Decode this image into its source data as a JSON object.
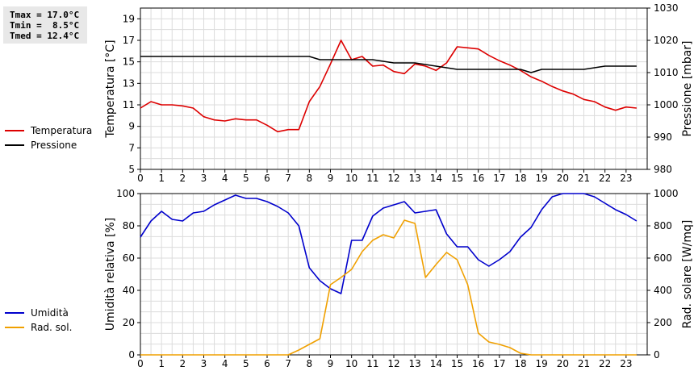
{
  "stats": {
    "tmax": "Tmax = 17.0°C",
    "tmin": "Tmin =  8.5°C",
    "tmed": "Tmed = 12.4°C"
  },
  "chart_data": [
    {
      "type": "line",
      "xlim": [
        0,
        24
      ],
      "x_ticks": [
        "0",
        "1",
        "2",
        "3",
        "4",
        "5",
        "6",
        "7",
        "8",
        "9",
        "10",
        "11",
        "12",
        "13",
        "14",
        "15",
        "16",
        "17",
        "18",
        "19",
        "20",
        "21",
        "22",
        "23"
      ],
      "ylabel_left": "Temperatura [°C]",
      "ylim_left": [
        5,
        20
      ],
      "yticks_left": [
        "5",
        "7",
        "9",
        "11",
        "13",
        "15",
        "17",
        "19"
      ],
      "ylabel_right": "Pressione [mbar]",
      "ylim_right": [
        980,
        1030
      ],
      "yticks_right": [
        "980",
        "990",
        "1000",
        "1010",
        "1020",
        "1030"
      ],
      "grid": true,
      "legend_position": "left",
      "series": [
        {
          "name": "Temperatura",
          "axis": "left",
          "color": "#dd0000",
          "x": [
            0,
            0.5,
            1,
            1.5,
            2,
            2.5,
            3,
            3.5,
            4,
            4.5,
            5,
            5.5,
            6,
            6.5,
            7,
            7.5,
            8,
            8.5,
            9,
            9.5,
            10,
            10.5,
            11,
            11.5,
            12,
            12.5,
            13,
            13.5,
            14,
            14.5,
            15,
            15.5,
            16,
            16.5,
            17,
            17.5,
            18,
            18.5,
            19,
            19.5,
            20,
            20.5,
            21,
            21.5,
            22,
            22.5,
            23,
            23.5
          ],
          "values": [
            10.7,
            11.3,
            11.0,
            11.0,
            10.9,
            10.7,
            9.9,
            9.6,
            9.5,
            9.7,
            9.6,
            9.6,
            9.1,
            8.5,
            8.7,
            8.7,
            11.3,
            12.7,
            14.8,
            17.0,
            15.2,
            15.5,
            14.6,
            14.7,
            14.1,
            13.9,
            14.8,
            14.6,
            14.2,
            14.9,
            16.4,
            16.3,
            16.2,
            15.6,
            15.1,
            14.7,
            14.2,
            13.6,
            13.2,
            12.7,
            12.3,
            12.0,
            11.5,
            11.3,
            10.8,
            10.5,
            10.8,
            10.7
          ]
        },
        {
          "name": "Pressione",
          "axis": "right",
          "color": "#000000",
          "x": [
            0,
            1,
            2,
            3,
            4,
            5,
            6,
            7,
            8,
            8.5,
            9,
            10,
            11,
            12,
            13,
            14,
            15,
            16,
            17,
            18,
            18.5,
            19,
            20,
            21,
            22,
            23,
            23.5
          ],
          "values": [
            1015,
            1015,
            1015,
            1015,
            1015,
            1015,
            1015,
            1015,
            1015,
            1014,
            1014,
            1014,
            1014,
            1013,
            1013,
            1012,
            1011,
            1011,
            1011,
            1011,
            1010,
            1011,
            1011,
            1011,
            1012,
            1012,
            1012
          ]
        }
      ]
    },
    {
      "type": "line",
      "xlim": [
        0,
        24
      ],
      "x_ticks": [
        "0",
        "1",
        "2",
        "3",
        "4",
        "5",
        "6",
        "7",
        "8",
        "9",
        "10",
        "11",
        "12",
        "13",
        "14",
        "15",
        "16",
        "17",
        "18",
        "19",
        "20",
        "21",
        "22",
        "23"
      ],
      "ylabel_left": "Umidità relativa [%]",
      "ylim_left": [
        0,
        100
      ],
      "yticks_left": [
        "0",
        "20",
        "40",
        "60",
        "80",
        "100"
      ],
      "ylabel_right": "Rad. solare [W/mq]",
      "ylim_right": [
        0,
        1000
      ],
      "yticks_right": [
        "0",
        "200",
        "400",
        "600",
        "800",
        "1000"
      ],
      "grid": true,
      "legend_position": "left",
      "series": [
        {
          "name": "Umidità",
          "axis": "left",
          "color": "#0000cc",
          "x": [
            0,
            0.5,
            1,
            1.5,
            2,
            2.5,
            3,
            3.5,
            4,
            4.5,
            5,
            5.5,
            6,
            6.5,
            7,
            7.5,
            8,
            8.5,
            9,
            9.5,
            10,
            10.5,
            11,
            11.5,
            12,
            12.5,
            13,
            13.5,
            14,
            14.5,
            15,
            15.5,
            16,
            16.5,
            17,
            17.5,
            18,
            18.5,
            19,
            19.5,
            20,
            20.5,
            21,
            21.5,
            22,
            22.5,
            23,
            23.5
          ],
          "values": [
            73,
            83,
            89,
            84,
            83,
            88,
            89,
            93,
            96,
            99,
            97,
            97,
            95,
            92,
            88,
            80,
            54,
            46,
            41,
            38,
            71,
            71,
            86,
            91,
            93,
            95,
            88,
            89,
            90,
            75,
            67,
            67,
            59,
            55,
            59,
            64,
            73,
            79,
            90,
            98,
            100,
            100,
            100,
            98,
            94,
            90,
            87,
            83
          ]
        },
        {
          "name": "Rad. sol.",
          "axis": "right",
          "color": "#f0a000",
          "x": [
            0,
            1,
            2,
            3,
            4,
            5,
            6,
            7,
            7.5,
            8,
            8.5,
            9,
            9.5,
            10,
            10.5,
            11,
            11.5,
            12,
            12.5,
            13,
            13.5,
            14,
            14.5,
            15,
            15.5,
            16,
            16.5,
            17,
            17.5,
            18,
            18.5,
            19,
            20,
            21,
            22,
            23,
            23.5
          ],
          "values": [
            0,
            0,
            0,
            0,
            0,
            0,
            0,
            0,
            30,
            65,
            100,
            435,
            480,
            530,
            640,
            710,
            745,
            725,
            835,
            815,
            480,
            560,
            635,
            590,
            435,
            135,
            80,
            65,
            45,
            10,
            0,
            0,
            0,
            0,
            0,
            0,
            0
          ]
        }
      ]
    }
  ]
}
